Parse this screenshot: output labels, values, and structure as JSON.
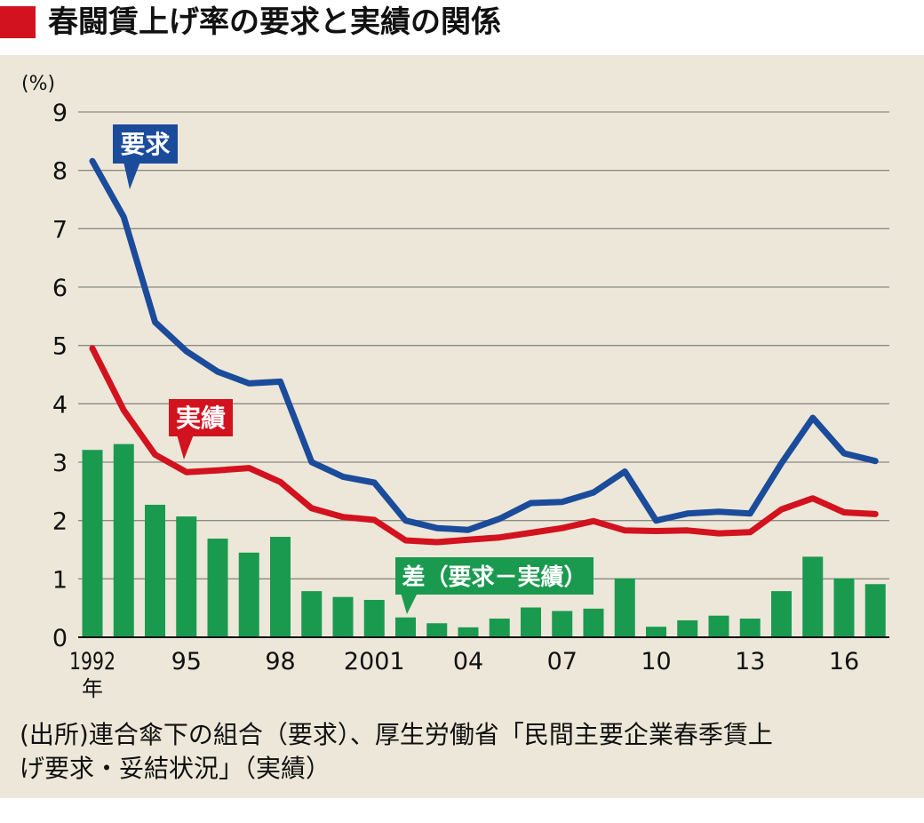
{
  "title": "春闘賃上げ率の要求と実績の関係",
  "colors": {
    "title_mark": "#d2121e",
    "panel_bg": "#ece7d8",
    "grid": "#8c8a85",
    "axis": "#111111",
    "demand": "#1b4b9b",
    "actual": "#d2121e",
    "diff": "#1a9a4f"
  },
  "chart_data": {
    "type": "line",
    "ylabel": "(%)",
    "ylim": [
      0,
      9
    ],
    "grid": true,
    "y_ticks": [
      "0",
      "1",
      "2",
      "3",
      "4",
      "5",
      "6",
      "7",
      "8",
      "9"
    ],
    "x": [
      1992,
      1993,
      1994,
      1995,
      1996,
      1997,
      1998,
      1999,
      2000,
      2001,
      2002,
      2003,
      2004,
      2005,
      2006,
      2007,
      2008,
      2009,
      2010,
      2011,
      2012,
      2013,
      2014,
      2015,
      2016,
      2017
    ],
    "x_ticks": [
      {
        "year": 1992,
        "label": "1992"
      },
      {
        "year": 1995,
        "label": "95"
      },
      {
        "year": 1998,
        "label": "98"
      },
      {
        "year": 2001,
        "label": "2001"
      },
      {
        "year": 2004,
        "label": "04"
      },
      {
        "year": 2007,
        "label": "07"
      },
      {
        "year": 2010,
        "label": "10"
      },
      {
        "year": 2013,
        "label": "13"
      },
      {
        "year": 2016,
        "label": "16"
      }
    ],
    "x_unit": "年",
    "series": [
      {
        "name": "要求",
        "kind": "line",
        "color": "#1b4b9b",
        "values": [
          8.16,
          7.2,
          5.4,
          4.9,
          4.55,
          4.35,
          4.38,
          3.0,
          2.75,
          2.65,
          2.0,
          1.87,
          1.84,
          2.03,
          2.3,
          2.32,
          2.48,
          2.84,
          2.0,
          2.12,
          2.15,
          2.12,
          2.98,
          3.76,
          3.15,
          3.02
        ]
      },
      {
        "name": "実績",
        "kind": "line",
        "color": "#d2121e",
        "values": [
          4.95,
          3.89,
          3.13,
          2.83,
          2.86,
          2.9,
          2.66,
          2.21,
          2.06,
          2.01,
          1.66,
          1.63,
          1.67,
          1.71,
          1.79,
          1.87,
          1.99,
          1.83,
          1.82,
          1.83,
          1.78,
          1.8,
          2.19,
          2.38,
          2.14,
          2.11
        ]
      },
      {
        "name": "差（要求－実績）",
        "kind": "bar",
        "color": "#1a9a4f",
        "values": [
          3.21,
          3.31,
          2.27,
          2.07,
          1.69,
          1.45,
          1.72,
          0.79,
          0.69,
          0.64,
          0.34,
          0.24,
          0.17,
          0.32,
          0.51,
          0.45,
          0.49,
          1.01,
          0.18,
          0.29,
          0.37,
          0.32,
          0.79,
          1.38,
          1.01,
          0.91
        ]
      }
    ]
  },
  "source_lines": [
    "(出所)連合傘下の組合（要求）、厚生労働省「民間主要企業春季賃上",
    "げ要求・妥結状況」（実績）"
  ]
}
